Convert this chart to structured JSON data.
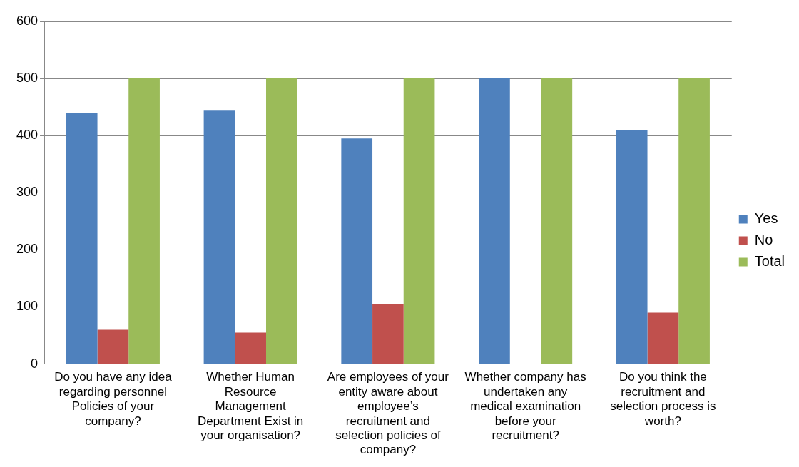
{
  "chart_data": {
    "type": "bar",
    "categories": [
      "Do you have any idea regarding personnel Policies of your company?",
      "Whether Human Resource Management Department Exist in your organisation?",
      "Are employees of your entity aware about employee’s recruitment and selection policies of company?",
      "Whether company has undertaken any medical examination before your recruitment?",
      "Do you think the recruitment and selection process is worth?"
    ],
    "series": [
      {
        "name": "Yes",
        "color": "#4f81bd",
        "values": [
          440,
          445,
          395,
          500,
          410
        ]
      },
      {
        "name": "No",
        "color": "#c0504d",
        "values": [
          60,
          55,
          105,
          0,
          90
        ]
      },
      {
        "name": "Total",
        "color": "#9bbb59",
        "values": [
          500,
          500,
          500,
          500,
          500
        ]
      }
    ],
    "ylim": [
      0,
      600
    ],
    "yticks": [
      0,
      100,
      200,
      300,
      400,
      500,
      600
    ],
    "grid": "y",
    "legend": "right"
  }
}
